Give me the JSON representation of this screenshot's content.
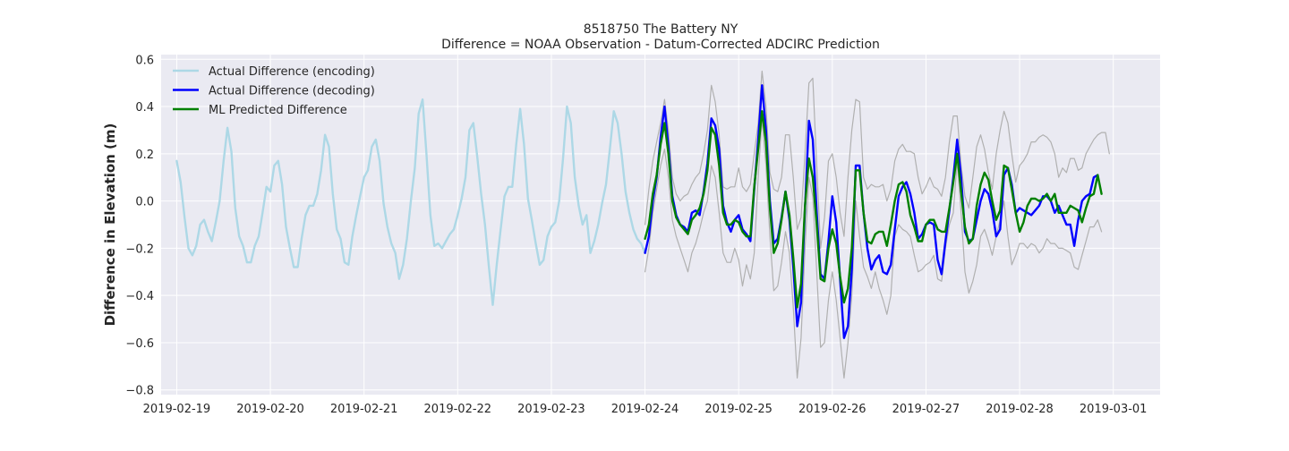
{
  "chart_data": {
    "type": "line",
    "title": "8518750 The Battery NY",
    "subtitle": "Difference = NOAA Observation - Datum-Corrected ADCIRC Prediction",
    "xlabel": "",
    "ylabel": "Difference in Elevation (m)",
    "xlim": [
      "2019-02-18 20:00",
      "2019-03-01 12:00"
    ],
    "ylim": [
      -0.82,
      0.62
    ],
    "x_ticks": [
      "2019-02-19",
      "2019-02-20",
      "2019-02-21",
      "2019-02-22",
      "2019-02-23",
      "2019-02-24",
      "2019-02-25",
      "2019-02-26",
      "2019-02-27",
      "2019-02-28",
      "2019-03-01"
    ],
    "y_ticks": [
      0.6,
      0.4,
      0.2,
      0.0,
      -0.2,
      -0.4,
      -0.6,
      -0.8
    ],
    "grid": true,
    "legend_position": "top-left",
    "series": [
      {
        "name": "Actual Difference (encoding)",
        "color": "#add8e6",
        "start": "2019-02-19 00:00",
        "step_hours": 1,
        "values": [
          0.17,
          0.08,
          -0.07,
          -0.2,
          -0.23,
          -0.19,
          -0.1,
          -0.08,
          -0.13,
          -0.17,
          -0.09,
          0.0,
          0.17,
          0.31,
          0.21,
          -0.03,
          -0.15,
          -0.19,
          -0.26,
          -0.26,
          -0.19,
          -0.15,
          -0.05,
          0.06,
          0.04,
          0.15,
          0.17,
          0.07,
          -0.11,
          -0.2,
          -0.28,
          -0.28,
          -0.16,
          -0.06,
          -0.02,
          -0.02,
          0.03,
          0.13,
          0.28,
          0.23,
          0.03,
          -0.12,
          -0.16,
          -0.26,
          -0.27,
          -0.15,
          -0.06,
          0.02,
          0.1,
          0.13,
          0.23,
          0.26,
          0.17,
          -0.01,
          -0.11,
          -0.18,
          -0.22,
          -0.33,
          -0.27,
          -0.16,
          0.0,
          0.14,
          0.37,
          0.43,
          0.2,
          -0.06,
          -0.19,
          -0.18,
          -0.2,
          -0.17,
          -0.14,
          -0.12,
          -0.06,
          0.01,
          0.1,
          0.3,
          0.33,
          0.19,
          0.03,
          -0.1,
          -0.28,
          -0.44,
          -0.27,
          -0.12,
          0.02,
          0.06,
          0.06,
          0.24,
          0.39,
          0.24,
          0.01,
          -0.08,
          -0.18,
          -0.27,
          -0.25,
          -0.15,
          -0.11,
          -0.09,
          0.0,
          0.18,
          0.4,
          0.33,
          0.1,
          -0.02,
          -0.1,
          -0.06,
          -0.22,
          -0.17,
          -0.1,
          -0.01,
          0.07,
          0.22,
          0.38,
          0.33,
          0.2,
          0.04,
          -0.05,
          -0.12,
          -0.16,
          -0.18,
          -0.22
        ]
      },
      {
        "name": "Actual Difference (decoding)",
        "color": "#0000ff",
        "start": "2019-02-24 00:00",
        "step_hours": 1,
        "values": [
          -0.22,
          -0.15,
          0.0,
          0.1,
          0.27,
          0.4,
          0.23,
          0.02,
          -0.06,
          -0.1,
          -0.11,
          -0.13,
          -0.05,
          -0.04,
          -0.06,
          0.04,
          0.16,
          0.35,
          0.32,
          0.22,
          -0.02,
          -0.09,
          -0.13,
          -0.08,
          -0.06,
          -0.12,
          -0.14,
          -0.17,
          0.05,
          0.26,
          0.49,
          0.3,
          0.0,
          -0.18,
          -0.16,
          -0.07,
          0.04,
          -0.08,
          -0.28,
          -0.53,
          -0.43,
          -0.03,
          0.34,
          0.26,
          -0.05,
          -0.31,
          -0.33,
          -0.17,
          0.02,
          -0.09,
          -0.33,
          -0.58,
          -0.53,
          -0.29,
          0.15,
          0.15,
          -0.05,
          -0.2,
          -0.29,
          -0.25,
          -0.23,
          -0.3,
          -0.31,
          -0.27,
          -0.12,
          0.02,
          0.06,
          0.08,
          0.03,
          -0.05,
          -0.16,
          -0.14,
          -0.1,
          -0.09,
          -0.1,
          -0.25,
          -0.31,
          -0.17,
          -0.04,
          0.1,
          0.26,
          0.1,
          -0.13,
          -0.17,
          -0.16,
          -0.08,
          0.0,
          0.05,
          0.03,
          -0.04,
          -0.15,
          -0.12,
          0.11,
          0.14,
          0.07,
          -0.05,
          -0.03,
          -0.04,
          -0.05,
          -0.06,
          -0.04,
          -0.02,
          0.02,
          0.02,
          0.0,
          -0.05,
          -0.02,
          -0.06,
          -0.1,
          -0.1,
          -0.19,
          -0.08,
          0.0,
          0.02,
          0.03,
          0.1,
          0.11
        ]
      },
      {
        "name": "ML Predicted Difference",
        "color": "#008000",
        "start": "2019-02-24 00:00",
        "step_hours": 1,
        "values": [
          -0.16,
          -0.1,
          0.03,
          0.11,
          0.24,
          0.33,
          0.2,
          0.0,
          -0.07,
          -0.1,
          -0.12,
          -0.14,
          -0.08,
          -0.06,
          -0.03,
          0.03,
          0.13,
          0.31,
          0.28,
          0.15,
          -0.05,
          -0.1,
          -0.1,
          -0.08,
          -0.09,
          -0.13,
          -0.15,
          -0.15,
          0.06,
          0.22,
          0.38,
          0.25,
          -0.03,
          -0.22,
          -0.18,
          -0.08,
          0.04,
          -0.06,
          -0.24,
          -0.45,
          -0.35,
          -0.02,
          0.18,
          0.1,
          -0.1,
          -0.33,
          -0.34,
          -0.2,
          -0.12,
          -0.18,
          -0.32,
          -0.43,
          -0.37,
          -0.2,
          0.13,
          0.13,
          -0.05,
          -0.17,
          -0.18,
          -0.14,
          -0.13,
          -0.13,
          -0.19,
          -0.1,
          0.0,
          0.07,
          0.08,
          0.04,
          -0.06,
          -0.11,
          -0.17,
          -0.17,
          -0.1,
          -0.08,
          -0.08,
          -0.12,
          -0.13,
          -0.13,
          -0.03,
          0.08,
          0.2,
          0.04,
          -0.11,
          -0.18,
          -0.16,
          -0.02,
          0.07,
          0.12,
          0.09,
          0.0,
          -0.08,
          -0.04,
          0.15,
          0.14,
          0.05,
          -0.05,
          -0.13,
          -0.09,
          -0.02,
          0.01,
          0.01,
          0.0,
          0.01,
          0.03,
          0.0,
          0.03,
          -0.05,
          -0.05,
          -0.05,
          -0.02,
          -0.03,
          -0.04,
          -0.09,
          -0.03,
          0.02,
          0.03,
          0.11,
          0.03
        ]
      },
      {
        "name": "",
        "color": "#b0b0b0",
        "start": "2019-02-24 00:00",
        "step_hours": 1,
        "values": [
          -0.1,
          0.05,
          0.17,
          0.25,
          0.33,
          0.43,
          0.3,
          0.1,
          0.03,
          0.0,
          0.02,
          0.03,
          0.07,
          0.1,
          0.12,
          0.2,
          0.3,
          0.49,
          0.42,
          0.28,
          0.06,
          0.05,
          0.06,
          0.06,
          0.14,
          0.06,
          0.04,
          0.07,
          0.2,
          0.33,
          0.55,
          0.4,
          0.12,
          0.05,
          0.04,
          0.1,
          0.28,
          0.28,
          0.1,
          -0.12,
          -0.07,
          0.2,
          0.5,
          0.52,
          0.15,
          -0.2,
          -0.07,
          0.17,
          0.2,
          0.1,
          -0.05,
          -0.15,
          0.1,
          0.3,
          0.43,
          0.42,
          0.1,
          0.05,
          0.07,
          0.06,
          0.06,
          0.07,
          0.0,
          0.05,
          0.17,
          0.22,
          0.24,
          0.21,
          0.21,
          0.2,
          0.1,
          0.03,
          0.06,
          0.1,
          0.06,
          0.05,
          0.02,
          0.1,
          0.25,
          0.36,
          0.36,
          0.15,
          0.02,
          -0.03,
          0.1,
          0.23,
          0.28,
          0.22,
          0.12,
          0.05,
          0.2,
          0.3,
          0.38,
          0.33,
          0.2,
          0.08,
          0.15,
          0.17,
          0.2,
          0.25,
          0.25,
          0.27,
          0.28,
          0.27,
          0.25,
          0.2,
          0.1,
          0.14,
          0.12,
          0.18,
          0.18,
          0.13,
          0.14,
          0.2,
          0.23,
          0.26,
          0.28,
          0.29,
          0.29,
          0.2
        ]
      },
      {
        "name": "",
        "color": "#b0b0b0",
        "start": "2019-02-24 00:00",
        "step_hours": 1,
        "values": [
          -0.3,
          -0.2,
          -0.05,
          0.05,
          0.15,
          0.22,
          0.1,
          -0.08,
          -0.15,
          -0.2,
          -0.25,
          -0.3,
          -0.22,
          -0.18,
          -0.12,
          -0.05,
          0.0,
          0.15,
          0.1,
          -0.05,
          -0.22,
          -0.26,
          -0.26,
          -0.2,
          -0.25,
          -0.36,
          -0.27,
          -0.33,
          -0.22,
          0.1,
          0.35,
          0.15,
          -0.15,
          -0.38,
          -0.36,
          -0.26,
          -0.13,
          -0.22,
          -0.45,
          -0.75,
          -0.58,
          -0.2,
          0.1,
          0.02,
          -0.3,
          -0.62,
          -0.6,
          -0.42,
          -0.3,
          -0.42,
          -0.58,
          -0.75,
          -0.6,
          -0.4,
          0.0,
          -0.15,
          -0.28,
          -0.32,
          -0.37,
          -0.3,
          -0.37,
          -0.42,
          -0.48,
          -0.4,
          -0.15,
          -0.1,
          -0.12,
          -0.13,
          -0.15,
          -0.23,
          -0.3,
          -0.29,
          -0.27,
          -0.26,
          -0.23,
          -0.33,
          -0.34,
          -0.2,
          -0.1,
          -0.05,
          0.17,
          -0.05,
          -0.3,
          -0.39,
          -0.34,
          -0.27,
          -0.15,
          -0.12,
          -0.17,
          -0.23,
          -0.15,
          -0.08,
          0.0,
          -0.15,
          -0.27,
          -0.23,
          -0.18,
          -0.18,
          -0.2,
          -0.18,
          -0.19,
          -0.22,
          -0.2,
          -0.16,
          -0.18,
          -0.18,
          -0.2,
          -0.2,
          -0.21,
          -0.22,
          -0.28,
          -0.29,
          -0.23,
          -0.17,
          -0.11,
          -0.11,
          -0.08,
          -0.13
        ]
      }
    ]
  }
}
